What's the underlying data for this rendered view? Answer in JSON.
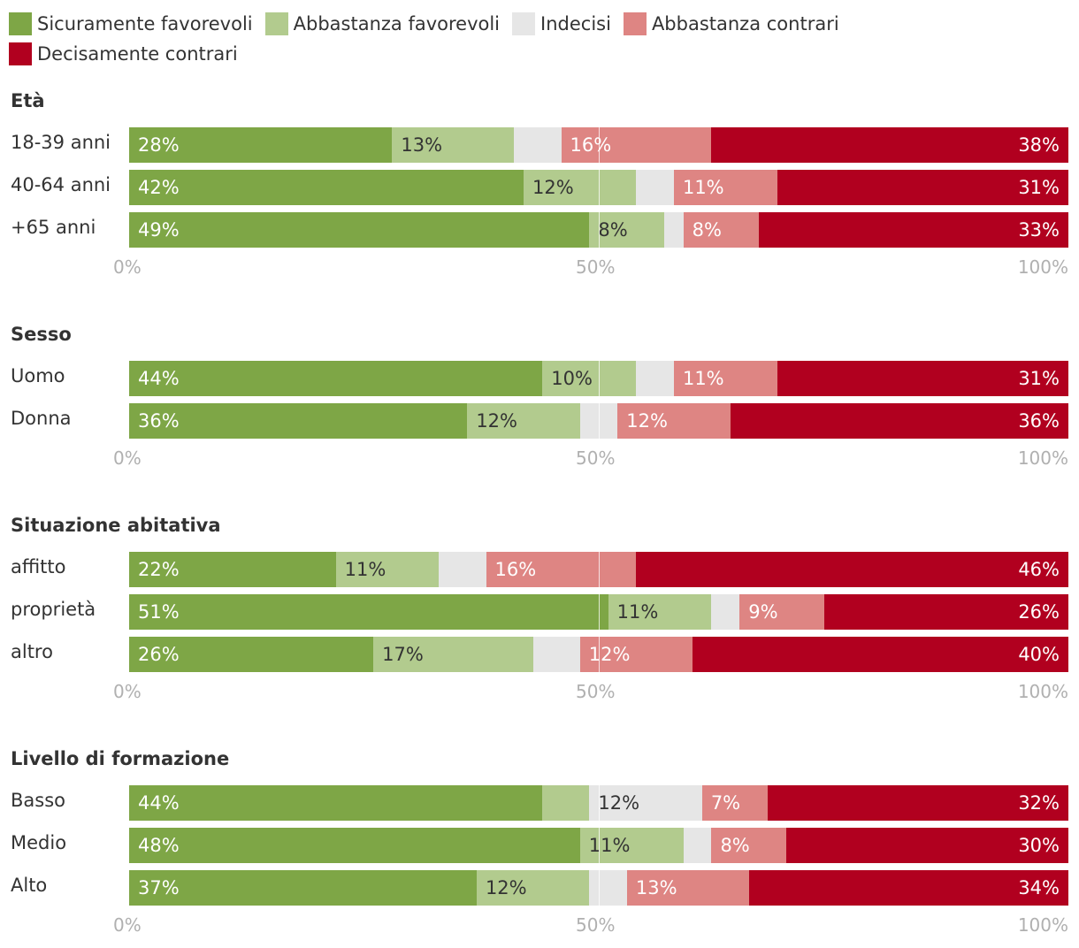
{
  "chart_data": {
    "type": "bar",
    "orientation": "horizontal",
    "stacked": true,
    "legend": [
      {
        "name": "Sicuramente favorevoli",
        "color": "#7ea646"
      },
      {
        "name": "Abbastanza favorevoli",
        "color": "#b2cb8e"
      },
      {
        "name": "Indecisi",
        "color": "#e6e6e6"
      },
      {
        "name": "Abbastanza contrari",
        "color": "#de8583"
      },
      {
        "name": "Decisamente contrari",
        "color": "#b1001f"
      }
    ],
    "xlim": [
      0,
      100
    ],
    "ticks": [
      "0%",
      "50%",
      "100%"
    ],
    "panels": [
      {
        "title": "Età",
        "rows": [
          {
            "label": "18-39 anni",
            "values": [
              28,
              13,
              5,
              16,
              38
            ]
          },
          {
            "label": "40-64 anni",
            "values": [
              42,
              12,
              4,
              11,
              31
            ]
          },
          {
            "label": "+65 anni",
            "values": [
              49,
              8,
              2,
              8,
              33
            ]
          }
        ]
      },
      {
        "title": "Sesso",
        "rows": [
          {
            "label": "Uomo",
            "values": [
              44,
              10,
              4,
              11,
              31
            ]
          },
          {
            "label": "Donna",
            "values": [
              36,
              12,
              4,
              12,
              36
            ]
          }
        ]
      },
      {
        "title": "Situazione abitativa",
        "rows": [
          {
            "label": "affitto",
            "values": [
              22,
              11,
              5,
              16,
              46
            ]
          },
          {
            "label": "proprietà",
            "values": [
              51,
              11,
              3,
              9,
              26
            ]
          },
          {
            "label": "altro",
            "values": [
              26,
              17,
              5,
              12,
              40
            ]
          }
        ]
      },
      {
        "title": "Livello di formazione",
        "rows": [
          {
            "label": "Basso",
            "values": [
              44,
              5,
              12,
              7,
              32
            ]
          },
          {
            "label": "Medio",
            "values": [
              48,
              11,
              3,
              8,
              30
            ]
          },
          {
            "label": "Alto",
            "values": [
              37,
              12,
              4,
              13,
              34
            ]
          }
        ]
      }
    ]
  }
}
